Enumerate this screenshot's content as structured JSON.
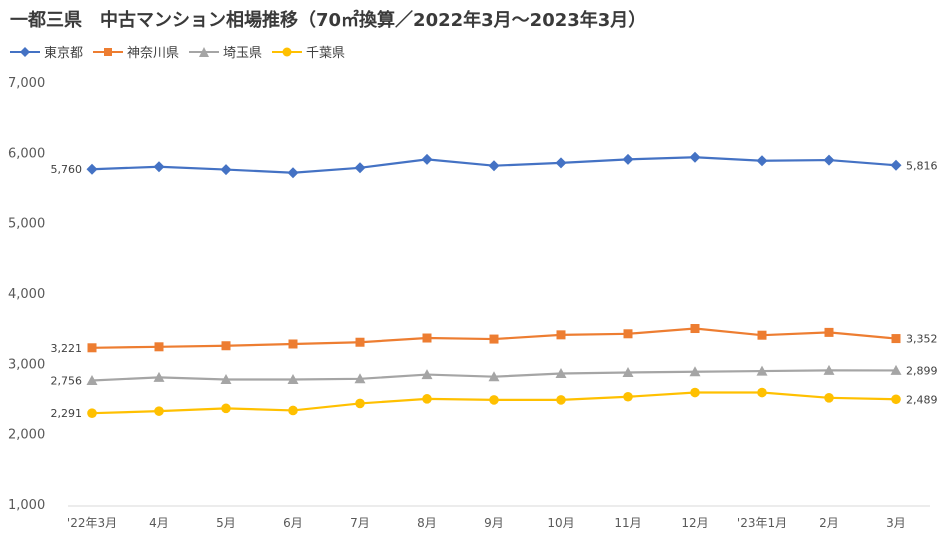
{
  "chart_data": {
    "type": "line",
    "title": "一都三県　中古マンション相場推移（70㎡換算／2022年3月～2023年3月）",
    "xlabel": "",
    "ylabel": "",
    "ylim": [
      1000,
      7000
    ],
    "yticks": [
      "1,000",
      "2,000",
      "3,000",
      "4,000",
      "5,000",
      "6,000",
      "7,000"
    ],
    "categories": [
      "'22年3月",
      "4月",
      "5月",
      "6月",
      "7月",
      "8月",
      "9月",
      "10月",
      "11月",
      "12月",
      "'23年1月",
      "2月",
      "3月"
    ],
    "grid": false,
    "legend_position": "top-left",
    "series": [
      {
        "name": "東京都",
        "color": "#4472C4",
        "marker": "diamond",
        "values": [
          5760,
          5795,
          5755,
          5710,
          5780,
          5900,
          5810,
          5850,
          5900,
          5930,
          5880,
          5890,
          5816
        ],
        "first_label": "5,760",
        "last_label": "5,816"
      },
      {
        "name": "神奈川県",
        "color": "#ED7D31",
        "marker": "square",
        "values": [
          3221,
          3235,
          3250,
          3275,
          3300,
          3360,
          3345,
          3405,
          3420,
          3495,
          3400,
          3440,
          3352
        ],
        "first_label": "3,221",
        "last_label": "3,352"
      },
      {
        "name": "埼玉県",
        "color": "#A5A5A5",
        "marker": "triangle",
        "values": [
          2756,
          2800,
          2770,
          2770,
          2780,
          2840,
          2810,
          2855,
          2870,
          2880,
          2890,
          2900,
          2899
        ],
        "first_label": "2,756",
        "last_label": "2,899"
      },
      {
        "name": "千葉県",
        "color": "#FFC000",
        "marker": "circle",
        "values": [
          2291,
          2320,
          2360,
          2330,
          2430,
          2495,
          2480,
          2480,
          2525,
          2585,
          2585,
          2510,
          2489
        ],
        "first_label": "2,291",
        "last_label": "2,489"
      }
    ]
  }
}
